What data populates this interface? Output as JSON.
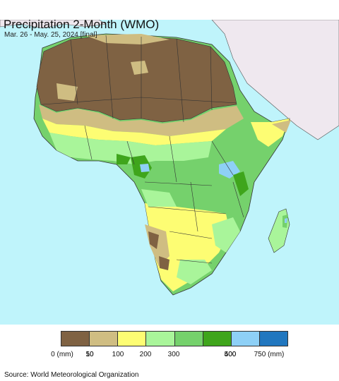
{
  "title": "Precipitation 2-Month (WMO)",
  "subtitle": "Mar. 26 - May. 25, 2024 [final]",
  "source": "Source: World Meteorological Organization",
  "legend": {
    "labels": [
      "0 (mm)",
      "10",
      "50",
      "100",
      "200",
      "300",
      "400",
      "500",
      "750 (mm)"
    ],
    "colors": [
      "#7f6243",
      "#cfbd82",
      "#fdfd73",
      "#a9f59a",
      "#75d16c",
      "#3fa51c",
      "#8ed0f6",
      "#2177bf"
    ]
  },
  "map": {
    "ocean_color": "#bff4fb",
    "non_africa_land_color": "#efe8ef",
    "no_data_land_color": "#efe8ef"
  }
}
